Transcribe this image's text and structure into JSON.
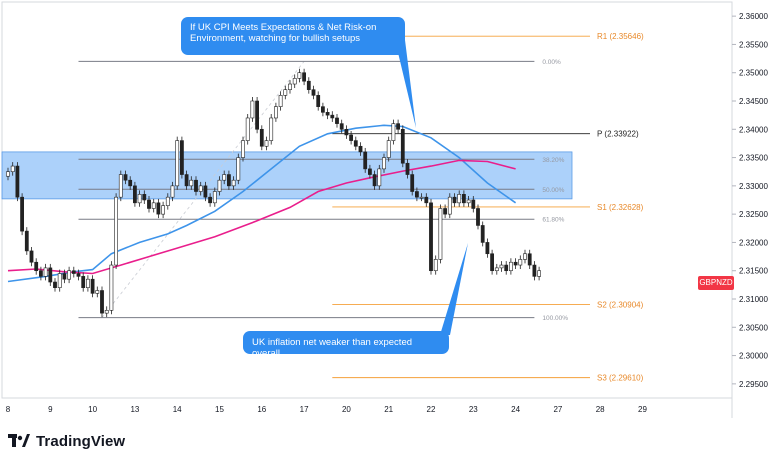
{
  "callouts": {
    "top": "If UK CPI Meets Expectations & Net Risk-on Environment, watching for bullish setups",
    "bottom": "UK inflation net weaker than expected overall"
  },
  "symbol": "GBPNZD",
  "footer": {
    "brand": "TradingView"
  },
  "colors": {
    "up": "#26a69a",
    "down": "#ef5350",
    "candle": "#222222",
    "ma_fast": "#3e94ea",
    "ma_slow": "#e91e8c",
    "pivot_lines": "#f5a13a",
    "fib_lines": "#787b86",
    "zone_fill": "#90c2f8",
    "callout_bg": "#2f8cf0",
    "symbol_badge": "#f23645"
  },
  "chart_data": {
    "type": "candlestick",
    "symbol": "GBPNZD",
    "ylim": [
      2.2925,
      2.3625
    ],
    "y_ticks": [
      "2.36000",
      "2.35500",
      "2.35000",
      "2.34500",
      "2.34000",
      "2.33500",
      "2.33000",
      "2.32500",
      "2.32000",
      "2.31500",
      "2.31000",
      "2.30500",
      "2.30000",
      "2.29500"
    ],
    "x_ticks": [
      {
        "label": "8",
        "i": 0
      },
      {
        "label": "9",
        "i": 9
      },
      {
        "label": "10",
        "i": 18
      },
      {
        "label": "13",
        "i": 27
      },
      {
        "label": "14",
        "i": 36
      },
      {
        "label": "15",
        "i": 45
      },
      {
        "label": "16",
        "i": 54
      },
      {
        "label": "17",
        "i": 63
      },
      {
        "label": "20",
        "i": 72
      },
      {
        "label": "21",
        "i": 81
      },
      {
        "label": "22",
        "i": 90
      },
      {
        "label": "23",
        "i": 99
      },
      {
        "label": "24",
        "i": 108
      },
      {
        "label": "27",
        "i": 117
      },
      {
        "label": "28",
        "i": 126
      },
      {
        "label": "29",
        "i": 135
      }
    ],
    "pivot_levels": [
      {
        "label": "R1 (2.35646)",
        "value": 2.35646,
        "start_i": 69,
        "color": "#f5a13a"
      },
      {
        "label": "P (2.33922)",
        "value": 2.33922,
        "start_i": 69,
        "color": "#222222"
      },
      {
        "label": "S1 (2.32628)",
        "value": 2.32628,
        "start_i": 69,
        "color": "#f5a13a"
      },
      {
        "label": "S2 (2.30904)",
        "value": 2.30904,
        "start_i": 69,
        "color": "#f5a13a"
      },
      {
        "label": "S3 (2.29610)",
        "value": 2.2961,
        "start_i": 69,
        "color": "#f5a13a"
      }
    ],
    "fib_levels": [
      {
        "label": "0.00%",
        "value": 2.352
      },
      {
        "label": "38.20%",
        "value": 2.3347
      },
      {
        "label": "50.00%",
        "value": 2.3294
      },
      {
        "label": "61.80%",
        "value": 2.3241
      },
      {
        "label": "100.00%",
        "value": 2.3067
      }
    ],
    "fib_start_i": 15,
    "fib_end_i": 112,
    "zone": {
      "from": 2.3277,
      "to": 2.336,
      "end_i": 120
    },
    "fib_trend": [
      {
        "i": 20,
        "y": 2.3067
      },
      {
        "i": 63,
        "y": 2.352
      }
    ],
    "candles_close": [
      2.3325,
      2.3335,
      2.328,
      2.322,
      2.3185,
      2.3165,
      2.315,
      2.314,
      2.3155,
      2.313,
      2.312,
      2.3145,
      2.3135,
      2.315,
      2.3145,
      2.314,
      2.312,
      2.3135,
      2.311,
      2.3115,
      2.3075,
      2.308,
      2.316,
      2.328,
      2.332,
      2.331,
      2.33,
      2.327,
      2.3285,
      2.3275,
      2.326,
      2.327,
      2.325,
      2.3265,
      2.328,
      2.33,
      2.338,
      2.332,
      2.33,
      2.331,
      2.329,
      2.33,
      2.328,
      2.327,
      2.329,
      2.331,
      2.332,
      2.33,
      2.331,
      2.335,
      2.338,
      2.342,
      2.345,
      2.34,
      2.337,
      2.338,
      2.342,
      2.344,
      2.346,
      2.347,
      2.348,
      2.349,
      2.35,
      2.3485,
      2.347,
      2.346,
      2.344,
      2.343,
      2.3425,
      2.342,
      2.341,
      2.34,
      2.339,
      2.338,
      2.337,
      2.336,
      2.333,
      2.332,
      2.33,
      2.333,
      2.335,
      2.338,
      2.341,
      2.34,
      2.334,
      2.332,
      2.329,
      2.328,
      2.328,
      2.327,
      2.315,
      2.317,
      2.326,
      2.325,
      2.328,
      2.327,
      2.3285,
      2.327,
      2.3275,
      2.326,
      2.323,
      2.32,
      2.318,
      2.315,
      2.3155,
      2.316,
      2.315,
      2.3165,
      2.316,
      2.317,
      2.318,
      2.316,
      2.314,
      2.315
    ],
    "ma_fast": [
      [
        0,
        2.3131
      ],
      [
        8,
        2.314
      ],
      [
        14,
        2.3148
      ],
      [
        18,
        2.3152
      ],
      [
        22,
        2.318
      ],
      [
        28,
        2.32
      ],
      [
        34,
        2.3215
      ],
      [
        38,
        2.323
      ],
      [
        44,
        2.3255
      ],
      [
        50,
        2.329
      ],
      [
        56,
        2.333
      ],
      [
        62,
        2.337
      ],
      [
        68,
        2.3392
      ],
      [
        74,
        2.3402
      ],
      [
        80,
        2.3407
      ],
      [
        84,
        2.3405
      ],
      [
        90,
        2.3385
      ],
      [
        96,
        2.335
      ],
      [
        102,
        2.3305
      ],
      [
        108,
        2.327
      ]
    ],
    "ma_slow": [
      [
        0,
        2.315
      ],
      [
        6,
        2.3153
      ],
      [
        12,
        2.3148
      ],
      [
        18,
        2.3145
      ],
      [
        24,
        2.316
      ],
      [
        30,
        2.3175
      ],
      [
        36,
        2.319
      ],
      [
        44,
        2.321
      ],
      [
        52,
        2.3235
      ],
      [
        60,
        2.3262
      ],
      [
        66,
        2.329
      ],
      [
        72,
        2.3305
      ],
      [
        78,
        2.3316
      ],
      [
        84,
        2.3326
      ],
      [
        90,
        2.3335
      ],
      [
        96,
        2.3345
      ],
      [
        102,
        2.3343
      ],
      [
        108,
        2.333
      ]
    ]
  }
}
